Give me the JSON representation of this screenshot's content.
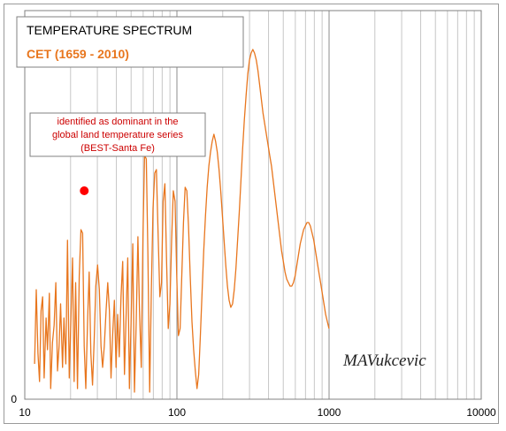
{
  "chart_data": {
    "type": "line",
    "title": "TEMPERATURE  SPECTRUM",
    "subtitle": "CET (1659 - 2010)",
    "xscale": "log",
    "xlim": [
      10,
      10000
    ],
    "ylim": [
      0,
      11
    ],
    "x_ticks": [
      "10",
      "100",
      "1000",
      "10000"
    ],
    "y_ticks": [
      "0"
    ],
    "grid": "vertical",
    "line_color": "#E8761E",
    "series": [
      {
        "points": [
          [
            11.6,
            1.0
          ],
          [
            11.9,
            3.1
          ],
          [
            12.2,
            1.3
          ],
          [
            12.5,
            0.5
          ],
          [
            12.8,
            2.5
          ],
          [
            13.1,
            2.9
          ],
          [
            13.4,
            0.6
          ],
          [
            13.8,
            2.3
          ],
          [
            14.1,
            1.4
          ],
          [
            14.5,
            3.0
          ],
          [
            14.8,
            0.3
          ],
          [
            15.2,
            1.6
          ],
          [
            15.6,
            2.1
          ],
          [
            16.0,
            3.3
          ],
          [
            16.4,
            0.8
          ],
          [
            16.8,
            1.5
          ],
          [
            17.2,
            2.7
          ],
          [
            17.7,
            0.9
          ],
          [
            18.1,
            2.3
          ],
          [
            18.6,
            1.0
          ],
          [
            19.1,
            4.5
          ],
          [
            19.6,
            0.6
          ],
          [
            20.1,
            2.2
          ],
          [
            20.6,
            4.0
          ],
          [
            21.1,
            0.5
          ],
          [
            21.6,
            3.3
          ],
          [
            22.2,
            0.3
          ],
          [
            22.8,
            3.5
          ],
          [
            23.4,
            4.8
          ],
          [
            24.0,
            4.7
          ],
          [
            24.6,
            1.5
          ],
          [
            25.2,
            0.3
          ],
          [
            25.9,
            2.3
          ],
          [
            26.5,
            3.6
          ],
          [
            27.2,
            1.3
          ],
          [
            27.9,
            0.4
          ],
          [
            28.6,
            1.7
          ],
          [
            29.3,
            3.2
          ],
          [
            30.1,
            3.8
          ],
          [
            30.9,
            3.1
          ],
          [
            31.7,
            1.5
          ],
          [
            32.5,
            0.9
          ],
          [
            33.3,
            1.5
          ],
          [
            34.2,
            2.5
          ],
          [
            35.1,
            3.3
          ],
          [
            36.0,
            2.5
          ],
          [
            36.9,
            0.6
          ],
          [
            37.8,
            1.8
          ],
          [
            38.8,
            2.8
          ],
          [
            39.8,
            0.9
          ],
          [
            40.8,
            2.4
          ],
          [
            41.8,
            1.2
          ],
          [
            42.9,
            2.9
          ],
          [
            44.0,
            3.9
          ],
          [
            45.2,
            0.7
          ],
          [
            46.3,
            2.3
          ],
          [
            47.5,
            4.0
          ],
          [
            48.7,
            0.3
          ],
          [
            50.0,
            2.2
          ],
          [
            51.3,
            4.4
          ],
          [
            52.6,
            0.2
          ],
          [
            54.0,
            2.2
          ],
          [
            55.4,
            4.6
          ],
          [
            56.8,
            2.5
          ],
          [
            58.3,
            0.9
          ],
          [
            59.8,
            4.6
          ],
          [
            61.3,
            6.9
          ],
          [
            62.9,
            6.8
          ],
          [
            64.5,
            4.1
          ],
          [
            66.2,
            0.2
          ],
          [
            67.9,
            3.1
          ],
          [
            69.7,
            5.4
          ],
          [
            71.5,
            6.4
          ],
          [
            73.3,
            6.5
          ],
          [
            75.2,
            4.7
          ],
          [
            77.2,
            2.9
          ],
          [
            79.2,
            3.3
          ],
          [
            81.2,
            5.6
          ],
          [
            83.3,
            6.1
          ],
          [
            85.5,
            3.9
          ],
          [
            87.7,
            2.0
          ],
          [
            90.0,
            2.7
          ],
          [
            92.3,
            4.5
          ],
          [
            94.7,
            5.9
          ],
          [
            97.2,
            5.6
          ],
          [
            99.7,
            3.5
          ],
          [
            102.3,
            1.8
          ],
          [
            104.9,
            2.0
          ],
          [
            107.6,
            3.5
          ],
          [
            110.4,
            5.0
          ],
          [
            113.3,
            6.0
          ],
          [
            116.2,
            5.9
          ],
          [
            119.2,
            4.9
          ],
          [
            122.3,
            3.5
          ],
          [
            125.5,
            2.2
          ],
          [
            128.8,
            1.4
          ],
          [
            132.1,
            0.8
          ],
          [
            135.5,
            0.3
          ],
          [
            139.0,
            0.7
          ],
          [
            142.6,
            1.8
          ],
          [
            146.3,
            3.0
          ],
          [
            150.1,
            4.2
          ],
          [
            154.0,
            5.2
          ],
          [
            158.0,
            6.0
          ],
          [
            162.1,
            6.6
          ],
          [
            166.3,
            7.0
          ],
          [
            170.6,
            7.3
          ],
          [
            175.0,
            7.5
          ],
          [
            179.6,
            7.3
          ],
          [
            184.2,
            7.0
          ],
          [
            189.0,
            6.5
          ],
          [
            193.9,
            5.9
          ],
          [
            198.9,
            5.2
          ],
          [
            204.1,
            4.5
          ],
          [
            209.4,
            3.8
          ],
          [
            214.8,
            3.2
          ],
          [
            220.4,
            2.8
          ],
          [
            226.1,
            2.6
          ],
          [
            232.0,
            2.7
          ],
          [
            238.0,
            3.1
          ],
          [
            244.2,
            3.7
          ],
          [
            250.5,
            4.5
          ],
          [
            257.0,
            5.3
          ],
          [
            263.7,
            6.2
          ],
          [
            270.5,
            7.1
          ],
          [
            277.5,
            7.9
          ],
          [
            284.7,
            8.6
          ],
          [
            292.1,
            9.2
          ],
          [
            299.7,
            9.6
          ],
          [
            307.5,
            9.8
          ],
          [
            315.5,
            9.9
          ],
          [
            323.7,
            9.8
          ],
          [
            332.1,
            9.6
          ],
          [
            340.7,
            9.3
          ],
          [
            349.5,
            8.9
          ],
          [
            358.6,
            8.5
          ],
          [
            367.9,
            8.1
          ],
          [
            377.4,
            7.8
          ],
          [
            387.2,
            7.5
          ],
          [
            397.2,
            7.2
          ],
          [
            407.5,
            6.9
          ],
          [
            418.1,
            6.6
          ],
          [
            429.0,
            6.2
          ],
          [
            440.1,
            5.8
          ],
          [
            451.5,
            5.4
          ],
          [
            463.2,
            5.0
          ],
          [
            475.3,
            4.6
          ],
          [
            487.6,
            4.2
          ],
          [
            500.2,
            3.9
          ],
          [
            513.2,
            3.6
          ],
          [
            526.5,
            3.4
          ],
          [
            540.2,
            3.3
          ],
          [
            554.2,
            3.2
          ],
          [
            568.6,
            3.2
          ],
          [
            583.3,
            3.3
          ],
          [
            598.5,
            3.5
          ],
          [
            614.0,
            3.8
          ],
          [
            629.9,
            4.1
          ],
          [
            646.3,
            4.4
          ],
          [
            663.1,
            4.6
          ],
          [
            680.3,
            4.8
          ],
          [
            697.9,
            4.9
          ],
          [
            716.0,
            5.0
          ],
          [
            734.6,
            5.0
          ],
          [
            753.7,
            4.9
          ],
          [
            773.2,
            4.7
          ],
          [
            793.3,
            4.5
          ],
          [
            813.9,
            4.2
          ],
          [
            835.0,
            3.9
          ],
          [
            856.7,
            3.6
          ],
          [
            878.9,
            3.3
          ],
          [
            901.7,
            3.0
          ],
          [
            925.1,
            2.7
          ],
          [
            949.1,
            2.4
          ],
          [
            973.7,
            2.2
          ],
          [
            999.0,
            2.0
          ]
        ]
      }
    ],
    "highlighted_points": [
      [
        24.6,
        5.9
      ],
      [
        69.7,
        7.4
      ]
    ],
    "annotation": {
      "lines": [
        "identified as dominant in the",
        "global land temperature series",
        "(BEST-Santa Fe)"
      ],
      "color": "#CC0000"
    },
    "signature": "MAVukcevic"
  }
}
